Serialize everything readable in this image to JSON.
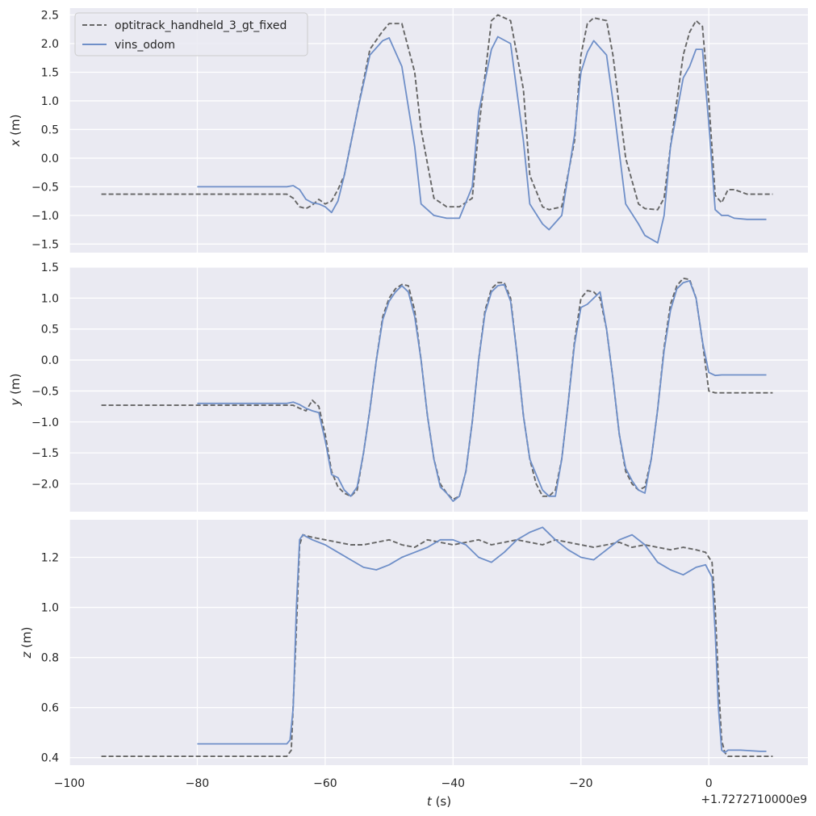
{
  "chart_data": [
    {
      "type": "line",
      "ylabel_var": "x",
      "ylabel_unit": " (m)",
      "ylim": [
        -1.65,
        2.62
      ],
      "yticks": [
        -1.5,
        -1.0,
        -0.5,
        0.0,
        0.5,
        1.0,
        1.5,
        2.0,
        2.5
      ],
      "ytick_labels": [
        "−1.5",
        "−1.0",
        "−0.5",
        "0.0",
        "0.5",
        "1.0",
        "1.5",
        "2.0",
        "2.5"
      ],
      "series": [
        {
          "name": "optitrack_handheld_3_gt_fixed",
          "x": [
            -95,
            -66,
            -65,
            -64,
            -63,
            -62,
            -61,
            -60,
            -59,
            -58,
            -57,
            -55,
            -53,
            -51,
            -50,
            -48,
            -46,
            -45,
            -43,
            -41,
            -39,
            -37,
            -36,
            -34,
            -33,
            -31,
            -29,
            -28,
            -26,
            -25,
            -23,
            -21,
            -20,
            -19,
            -18,
            -16,
            -15,
            -13,
            -11,
            -10,
            -8,
            -7,
            -6,
            -4,
            -3,
            -2,
            -1,
            0,
            1,
            2,
            3,
            4,
            6,
            8,
            10
          ],
          "y": [
            -0.63,
            -0.63,
            -0.7,
            -0.85,
            -0.88,
            -0.82,
            -0.72,
            -0.8,
            -0.75,
            -0.55,
            -0.3,
            0.8,
            1.9,
            2.22,
            2.35,
            2.35,
            1.5,
            0.5,
            -0.7,
            -0.85,
            -0.85,
            -0.7,
            0.5,
            2.4,
            2.5,
            2.4,
            1.2,
            -0.3,
            -0.85,
            -0.9,
            -0.85,
            0.3,
            1.8,
            2.35,
            2.45,
            2.4,
            1.8,
            0.0,
            -0.8,
            -0.88,
            -0.9,
            -0.7,
            0.2,
            1.8,
            2.2,
            2.4,
            2.3,
            1.0,
            -0.65,
            -0.78,
            -0.55,
            -0.55,
            -0.63,
            -0.63,
            -0.63
          ]
        },
        {
          "name": "vins_odom",
          "x": [
            -80,
            -66,
            -65,
            -64,
            -63,
            -62,
            -61,
            -60,
            -59,
            -58,
            -57,
            -55,
            -53,
            -51,
            -50,
            -48,
            -46,
            -45,
            -43,
            -41,
            -39,
            -37,
            -36,
            -34,
            -33,
            -31,
            -29,
            -28,
            -26,
            -25,
            -23,
            -21,
            -20,
            -19,
            -18,
            -16,
            -15,
            -13,
            -11,
            -10,
            -8,
            -7,
            -6,
            -4,
            -3,
            -2,
            -1,
            0,
            1,
            2,
            3,
            4,
            6,
            8,
            9
          ],
          "y": [
            -0.5,
            -0.5,
            -0.48,
            -0.55,
            -0.72,
            -0.78,
            -0.8,
            -0.85,
            -0.95,
            -0.75,
            -0.3,
            0.8,
            1.8,
            2.05,
            2.1,
            1.6,
            0.2,
            -0.8,
            -1.0,
            -1.05,
            -1.05,
            -0.5,
            0.8,
            1.9,
            2.12,
            2.0,
            0.3,
            -0.8,
            -1.15,
            -1.25,
            -1.0,
            0.4,
            1.5,
            1.85,
            2.05,
            1.8,
            1.0,
            -0.8,
            -1.15,
            -1.35,
            -1.48,
            -1.0,
            0.2,
            1.4,
            1.6,
            1.9,
            1.9,
            0.6,
            -0.9,
            -1.0,
            -1.0,
            -1.05,
            -1.07,
            -1.07,
            -1.07
          ]
        }
      ]
    },
    {
      "type": "line",
      "ylabel_var": "y",
      "ylabel_unit": " (m)",
      "ylim": [
        -2.45,
        1.5
      ],
      "yticks": [
        -2.0,
        -1.5,
        -1.0,
        -0.5,
        0.0,
        0.5,
        1.0,
        1.5
      ],
      "ytick_labels": [
        "−2.0",
        "−1.5",
        "−1.0",
        "−0.5",
        "0.0",
        "0.5",
        "1.0",
        "1.5"
      ],
      "series": [
        {
          "name": "optitrack_handheld_3_gt_fixed",
          "x": [
            -95,
            -66,
            -65,
            -64,
            -63,
            -62,
            -61,
            -60,
            -59,
            -58,
            -57,
            -56,
            -55,
            -54,
            -53,
            -52,
            -51,
            -50,
            -49,
            -48,
            -47,
            -46,
            -45,
            -44,
            -43,
            -42,
            -41,
            -40,
            -39,
            -38,
            -37,
            -36,
            -35,
            -34,
            -33,
            -32,
            -31,
            -30,
            -29,
            -28,
            -27,
            -26,
            -25,
            -24,
            -23,
            -22,
            -21,
            -20,
            -19,
            -18,
            -17,
            -16,
            -15,
            -14,
            -13,
            -12,
            -11,
            -10,
            -9,
            -8,
            -7,
            -6,
            -5,
            -4,
            -3,
            -2,
            -1,
            0,
            1,
            2,
            3,
            4,
            6,
            8,
            10
          ],
          "y": [
            -0.73,
            -0.73,
            -0.73,
            -0.78,
            -0.82,
            -0.65,
            -0.75,
            -1.2,
            -1.8,
            -2.05,
            -2.15,
            -2.2,
            -2.1,
            -1.5,
            -0.8,
            0.0,
            0.7,
            1.0,
            1.15,
            1.22,
            1.2,
            0.8,
            0.0,
            -0.9,
            -1.6,
            -2.0,
            -2.15,
            -2.25,
            -2.2,
            -1.8,
            -1.0,
            0.0,
            0.8,
            1.15,
            1.25,
            1.25,
            1.0,
            0.1,
            -0.9,
            -1.6,
            -2.0,
            -2.2,
            -2.2,
            -2.1,
            -1.6,
            -0.7,
            0.3,
            1.0,
            1.12,
            1.1,
            1.0,
            0.5,
            -0.3,
            -1.2,
            -1.8,
            -2.0,
            -2.1,
            -2.05,
            -1.6,
            -0.8,
            0.2,
            0.9,
            1.2,
            1.32,
            1.3,
            1.0,
            0.3,
            -0.5,
            -0.53,
            -0.53,
            -0.53,
            -0.53,
            -0.53,
            -0.53,
            -0.53
          ]
        },
        {
          "name": "vins_odom",
          "x": [
            -80,
            -66,
            -65,
            -64,
            -63,
            -62,
            -61,
            -60,
            -59,
            -58,
            -57,
            -56,
            -55,
            -54,
            -53,
            -52,
            -51,
            -50,
            -49,
            -48,
            -47,
            -46,
            -45,
            -44,
            -43,
            -42,
            -41,
            -40,
            -39,
            -38,
            -37,
            -36,
            -35,
            -34,
            -33,
            -32,
            -31,
            -30,
            -29,
            -28,
            -27,
            -26,
            -25,
            -24,
            -23,
            -22,
            -21,
            -20,
            -19,
            -18,
            -17,
            -16,
            -15,
            -14,
            -13,
            -12,
            -11,
            -10,
            -9,
            -8,
            -7,
            -6,
            -5,
            -4,
            -3,
            -2,
            -1,
            0,
            1,
            2,
            3,
            4,
            6,
            8,
            9
          ],
          "y": [
            -0.7,
            -0.7,
            -0.68,
            -0.72,
            -0.78,
            -0.82,
            -0.85,
            -1.3,
            -1.85,
            -1.9,
            -2.1,
            -2.2,
            -2.05,
            -1.5,
            -0.8,
            0.0,
            0.65,
            0.95,
            1.1,
            1.2,
            1.1,
            0.7,
            0.0,
            -0.9,
            -1.6,
            -2.05,
            -2.15,
            -2.28,
            -2.2,
            -1.8,
            -1.0,
            0.0,
            0.75,
            1.1,
            1.2,
            1.22,
            0.95,
            0.1,
            -0.9,
            -1.6,
            -1.85,
            -2.1,
            -2.2,
            -2.2,
            -1.6,
            -0.7,
            0.25,
            0.85,
            0.9,
            1.0,
            1.1,
            0.5,
            -0.3,
            -1.2,
            -1.75,
            -1.95,
            -2.1,
            -2.15,
            -1.6,
            -0.8,
            0.15,
            0.8,
            1.15,
            1.25,
            1.28,
            1.0,
            0.3,
            -0.2,
            -0.25,
            -0.24,
            -0.24,
            -0.24,
            -0.24,
            -0.24,
            -0.24
          ]
        }
      ]
    },
    {
      "type": "line",
      "ylabel_var": "z",
      "ylabel_unit": " (m)",
      "ylim": [
        0.37,
        1.35
      ],
      "yticks": [
        0.4,
        0.6,
        0.8,
        1.0,
        1.2
      ],
      "ytick_labels": [
        "0.4",
        "0.6",
        "0.8",
        "1.0",
        "1.2"
      ],
      "xlabel_var": "t",
      "xlabel_unit": " (s)",
      "xlim": [
        -100,
        15.5
      ],
      "xticks": [
        -100,
        -80,
        -60,
        -40,
        -20,
        0
      ],
      "xtick_labels": [
        "−100",
        "−80",
        "−60",
        "−40",
        "−20",
        "0"
      ],
      "offset_text": "+1.7272710000e9",
      "series": [
        {
          "name": "optitrack_handheld_3_gt_fixed",
          "x": [
            -95,
            -66,
            -65.3,
            -64.6,
            -64,
            -63.5,
            -62,
            -60,
            -58,
            -56,
            -54,
            -52,
            -50,
            -48,
            -46,
            -44,
            -42,
            -40,
            -38,
            -36,
            -34,
            -32,
            -30,
            -28,
            -26,
            -24,
            -22,
            -20,
            -18,
            -16,
            -14,
            -12,
            -10,
            -8,
            -6,
            -4,
            -2,
            -0.5,
            0.5,
            1,
            1.5,
            2,
            2.5,
            3,
            5,
            8,
            10
          ],
          "y": [
            0.405,
            0.405,
            0.43,
            0.85,
            1.25,
            1.29,
            1.28,
            1.27,
            1.26,
            1.25,
            1.25,
            1.26,
            1.27,
            1.25,
            1.24,
            1.27,
            1.26,
            1.25,
            1.26,
            1.27,
            1.25,
            1.26,
            1.27,
            1.26,
            1.25,
            1.27,
            1.26,
            1.25,
            1.24,
            1.25,
            1.26,
            1.24,
            1.25,
            1.24,
            1.23,
            1.24,
            1.23,
            1.22,
            1.18,
            1.0,
            0.7,
            0.47,
            0.42,
            0.405,
            0.405,
            0.405,
            0.405
          ]
        },
        {
          "name": "vins_odom",
          "x": [
            -80,
            -67,
            -66,
            -65.5,
            -65,
            -64.5,
            -64,
            -63.5,
            -62,
            -60,
            -58,
            -56,
            -54,
            -52,
            -50,
            -48,
            -46,
            -44,
            -42,
            -40,
            -38,
            -36,
            -34,
            -32,
            -30,
            -28,
            -26,
            -24,
            -22,
            -20,
            -18,
            -16,
            -14,
            -12,
            -10,
            -8,
            -6,
            -4,
            -2,
            -0.5,
            0.5,
            1,
            1.5,
            2,
            2.5,
            3,
            5,
            8,
            9
          ],
          "y": [
            0.455,
            0.455,
            0.455,
            0.47,
            0.6,
            1.0,
            1.27,
            1.29,
            1.27,
            1.25,
            1.22,
            1.19,
            1.16,
            1.15,
            1.17,
            1.2,
            1.22,
            1.24,
            1.27,
            1.27,
            1.25,
            1.2,
            1.18,
            1.22,
            1.27,
            1.3,
            1.32,
            1.27,
            1.23,
            1.2,
            1.19,
            1.23,
            1.27,
            1.29,
            1.25,
            1.18,
            1.15,
            1.13,
            1.16,
            1.17,
            1.12,
            0.9,
            0.6,
            0.43,
            0.42,
            0.43,
            0.43,
            0.425,
            0.425
          ]
        }
      ]
    }
  ],
  "legend": {
    "entries": [
      {
        "label": "optitrack_handheld_3_gt_fixed",
        "color": "#666666",
        "style": "dashed"
      },
      {
        "label": "vins_odom",
        "color": "#6f8fc8",
        "style": "solid"
      }
    ],
    "placement": "upper-left of top panel"
  },
  "colors": {
    "plot_background": "#eaeaf2",
    "grid": "#ffffff",
    "gt_line": "#666666",
    "odom_line": "#6f8fc8",
    "text": "#262626"
  }
}
